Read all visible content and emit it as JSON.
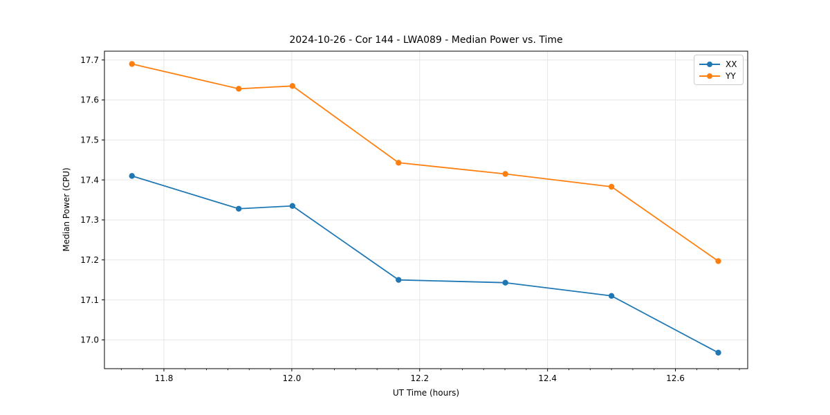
{
  "title": "2024-10-26 - Cor 144 - LWA089 - Median Power vs. Time",
  "chart_data": {
    "type": "line",
    "title": "2024-10-26 - Cor 144 - LWA089 - Median Power vs. Time",
    "xlabel": "UT Time (hours)",
    "ylabel": "Median Power (CPU)",
    "x": [
      11.75,
      11.917,
      12.001,
      12.167,
      12.334,
      12.5,
      12.667
    ],
    "series": [
      {
        "name": "XX",
        "color": "#1f77b4",
        "values": [
          17.41,
          17.328,
          17.335,
          17.15,
          17.143,
          17.11,
          16.968
        ]
      },
      {
        "name": "YY",
        "color": "#ff7f0e",
        "values": [
          17.69,
          17.628,
          17.635,
          17.443,
          17.415,
          17.383,
          17.197
        ]
      }
    ],
    "xlim": [
      11.707,
      12.713
    ],
    "ylim": [
      16.928,
      17.722
    ],
    "xticks": [
      11.8,
      12.0,
      12.2,
      12.4,
      12.6
    ],
    "yticks": [
      17.0,
      17.1,
      17.2,
      17.3,
      17.4,
      17.5,
      17.6,
      17.7
    ],
    "minor_xtick_divisions": 6,
    "grid": true,
    "grid_color": "#e6e6e6",
    "frame_color": "#000000",
    "legend_position": "upper right"
  },
  "legend": {
    "items": [
      {
        "label": "XX",
        "color": "#1f77b4"
      },
      {
        "label": "YY",
        "color": "#ff7f0e"
      }
    ]
  }
}
